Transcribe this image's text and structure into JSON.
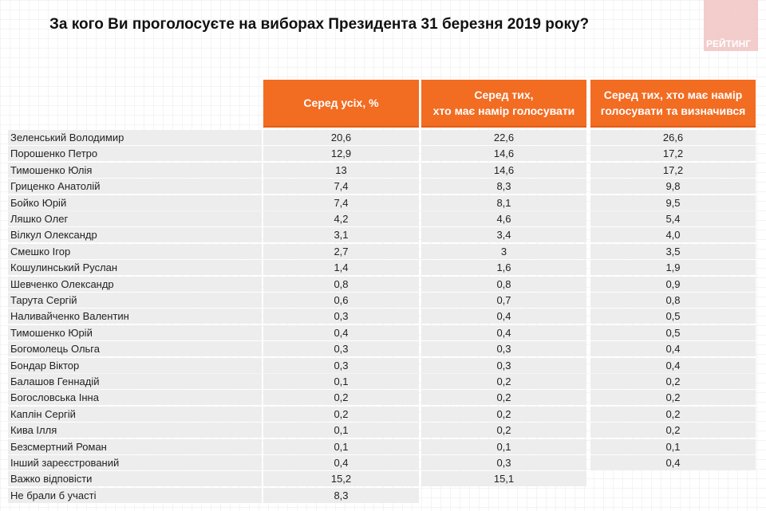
{
  "title": "За кого Ви проголосуєте на виборах Президента 31 березня 2019 року?",
  "logo": "РЕЙТИНГ",
  "columns": [
    "Серед усіх, %",
    "Серед тих,\nхто має намір голосувати",
    "Серед тих, хто має намір\nголосувати та визначився"
  ],
  "rows": [
    [
      "Зеленський Володимир",
      "20,6",
      "22,6",
      "26,6"
    ],
    [
      "Порошенко Петро",
      "12,9",
      "14,6",
      "17,2"
    ],
    [
      "Тимошенко Юлія",
      "13",
      "14,6",
      "17,2"
    ],
    [
      "Гриценко Анатолій",
      "7,4",
      "8,3",
      "9,8"
    ],
    [
      "Бойко Юрій",
      "7,4",
      "8,1",
      "9,5"
    ],
    [
      "Ляшко Олег",
      "4,2",
      "4,6",
      "5,4"
    ],
    [
      "Вілкул Олександр",
      "3,1",
      "3,4",
      "4,0"
    ],
    [
      "Смешко Ігор",
      "2,7",
      "3",
      "3,5"
    ],
    [
      "Кошулинський Руслан",
      "1,4",
      "1,6",
      "1,9"
    ],
    [
      "Шевченко Олександр",
      "0,8",
      "0,8",
      "0,9"
    ],
    [
      "Тарута Сергій",
      "0,6",
      "0,7",
      "0,8"
    ],
    [
      "Наливайченко Валентин",
      "0,3",
      "0,4",
      "0,5"
    ],
    [
      "Тимошенко Юрій",
      "0,4",
      "0,4",
      "0,5"
    ],
    [
      "Богомолець Ольга",
      "0,3",
      "0,3",
      "0,4"
    ],
    [
      "Бондар Віктор",
      "0,3",
      "0,3",
      "0,4"
    ],
    [
      "Балашов Геннадій",
      "0,1",
      "0,2",
      "0,2"
    ],
    [
      "Богословська Інна",
      "0,2",
      "0,2",
      "0,2"
    ],
    [
      "Каплін Сергій",
      "0,2",
      "0,2",
      "0,2"
    ],
    [
      "Кива Ілля",
      "0,1",
      "0,2",
      "0,2"
    ],
    [
      "Безсмертний Роман",
      "0,1",
      "0,1",
      "0,1"
    ],
    [
      "Інший зареєстрований",
      "0,4",
      "0,3",
      "0,4"
    ],
    [
      "Важко відповісти",
      "15,2",
      "15,1"
    ],
    [
      "Не брали б участі",
      "8,3"
    ]
  ]
}
